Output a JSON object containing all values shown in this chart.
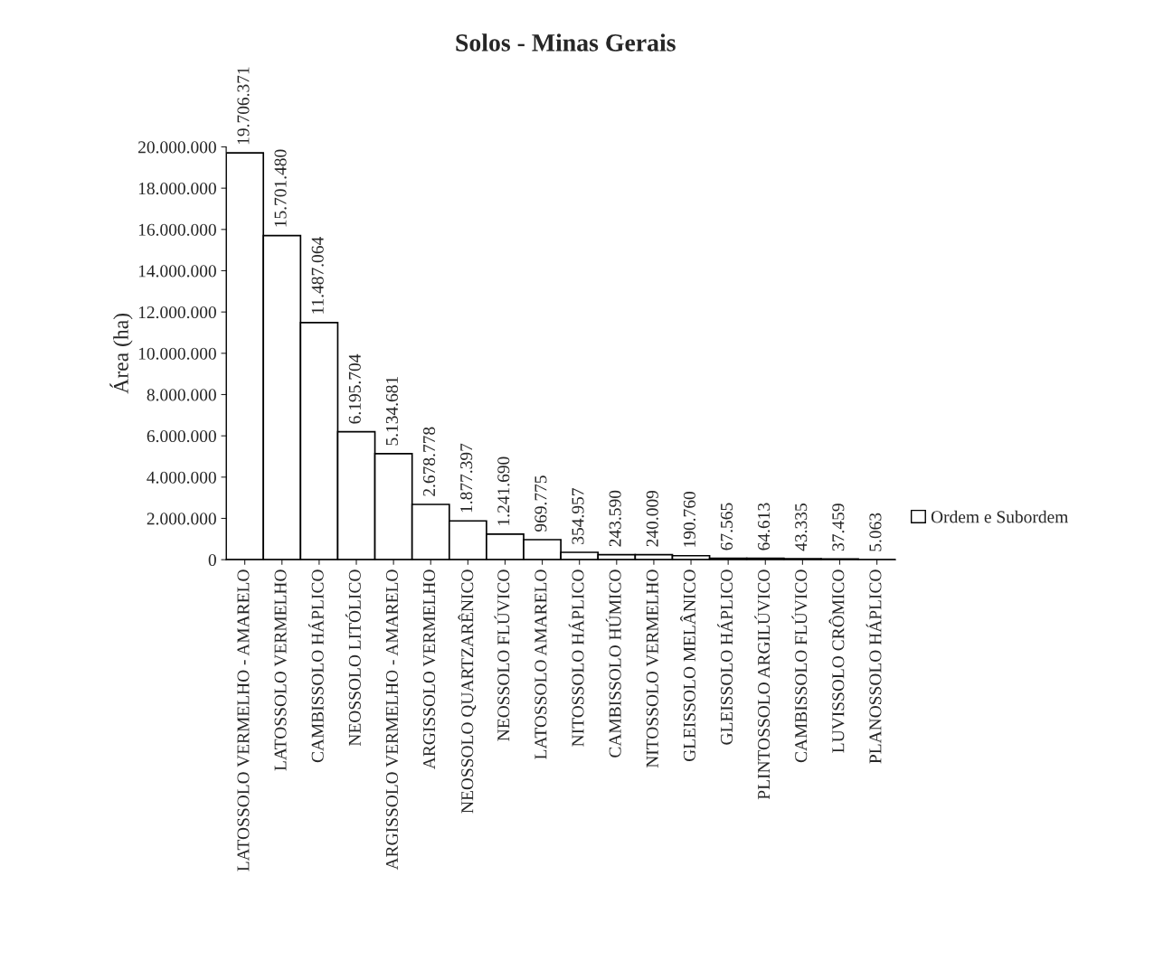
{
  "chart_data": {
    "type": "bar",
    "title": "Solos - Minas Gerais",
    "ylabel": "Área (ha)",
    "categories": [
      "LATOSSOLO VERMELHO - AMARELO",
      "LATOSSOLO VERMELHO",
      "CAMBISSOLO HÁPLICO",
      "NEOSSOLO LITÓLICO",
      "ARGISSOLO VERMELHO - AMARELO",
      "ARGISSOLO VERMELHO",
      "NEOSSOLO QUARTZARÊNICO",
      "NEOSSOLO FLÚVICO",
      "LATOSSOLO AMARELO",
      "NITOSSOLO HÁPLICO",
      "CAMBISSOLO HÚMICO",
      "NITOSSOLO VERMELHO",
      "GLEISSOLO MELÂNICO",
      "GLEISSOLO HÁPLICO",
      "PLINTOSSOLO ARGILÚVICO",
      "CAMBISSOLO FLÚVICO",
      "LUVISSOLO CRÔMICO",
      "PLANOSSOLO HÁPLICO"
    ],
    "series": [
      {
        "name": "Ordem e Subordem",
        "color": "#ffffff",
        "values": [
          19706371,
          15701480,
          11487064,
          6195704,
          5134681,
          2678778,
          1877397,
          1241690,
          969775,
          354957,
          243590,
          240009,
          190760,
          67565,
          64613,
          43335,
          37459,
          5063
        ],
        "value_labels": [
          "19.706.371",
          "15.701.480",
          "11.487.064",
          "6.195.704",
          "5.134.681",
          "2.678.778",
          "1.877.397",
          "1.241.690",
          "969.775",
          "354.957",
          "243.590",
          "240.009",
          "190.760",
          "67.565",
          "64.613",
          "43.335",
          "37.459",
          "5.063"
        ]
      }
    ],
    "ylim": [
      0,
      20000000
    ],
    "yticks": [
      {
        "value": 0,
        "label": "0"
      },
      {
        "value": 2000000,
        "label": "2.000.000"
      },
      {
        "value": 4000000,
        "label": "4.000.000"
      },
      {
        "value": 6000000,
        "label": "6.000.000"
      },
      {
        "value": 8000000,
        "label": "8.000.000"
      },
      {
        "value": 10000000,
        "label": "10.000.000"
      },
      {
        "value": 12000000,
        "label": "12.000.000"
      },
      {
        "value": 14000000,
        "label": "14.000.000"
      },
      {
        "value": 16000000,
        "label": "16.000.000"
      },
      {
        "value": 18000000,
        "label": "18.000.000"
      },
      {
        "value": 20000000,
        "label": "20.000.000"
      }
    ],
    "grid": false,
    "legend": "right"
  }
}
